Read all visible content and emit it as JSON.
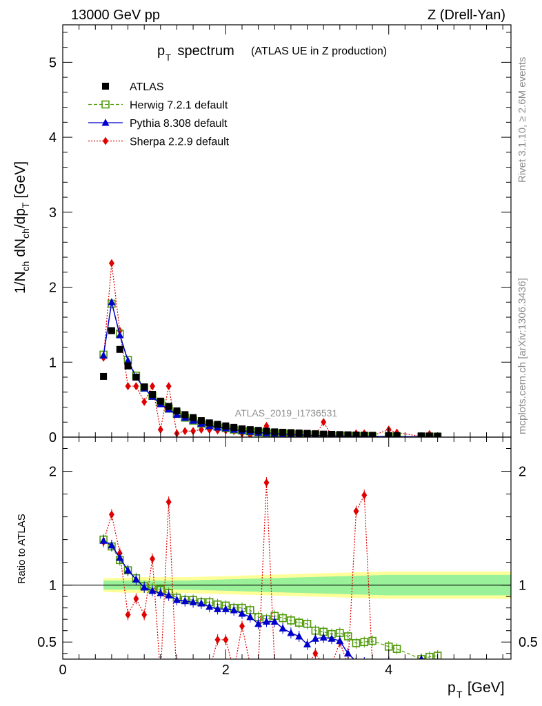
{
  "header": {
    "left": "13000 GeV pp",
    "right": "Z (Drell-Yan)"
  },
  "side": {
    "top": "Rivet 3.1.10, ≥ 2.6M events",
    "bottom": "mcplots.cern.ch [arXiv:1306.3436]"
  },
  "chart_data": {
    "type": "line",
    "title_main": "p",
    "title_sub": "T",
    "title_rest": " spectrum",
    "title_note": "(ATLAS UE in Z production)",
    "watermark": "ATLAS_2019_I1736531",
    "xlabel_main": "p",
    "xlabel_sub": "T",
    "xlabel_unit": " [GeV]",
    "ylabel": "1/N_ch dN_ch/dp_T [GeV]",
    "ylabel_parts": {
      "a": "1/N",
      "b": "ch",
      "c": " dN",
      "d": "ch",
      "e": "/dp",
      "f": "T",
      "g": " [GeV]"
    },
    "ratio_ylabel": "Ratio to ATLAS",
    "xlim": [
      0,
      5.5
    ],
    "ylim": [
      0,
      5.5
    ],
    "ratio_ylim": [
      0.35,
      2.3
    ],
    "x_ticks": [
      0,
      2,
      4
    ],
    "y_ticks": [
      0,
      1,
      2,
      3,
      4,
      5
    ],
    "ratio_y_ticks": [
      0.5,
      1,
      2
    ],
    "legend": [
      {
        "name": "ATLAS",
        "color": "#000000",
        "marker": "square-filled"
      },
      {
        "name": "Herwig 7.2.1 default",
        "color": "#4e9a06",
        "marker": "square-open"
      },
      {
        "name": "Pythia 8.308 default",
        "color": "#0000cc",
        "marker": "triangle"
      },
      {
        "name": "Sherpa 2.2.9 default",
        "color": "#e00000",
        "marker": "diamond"
      }
    ],
    "x": [
      0.5,
      0.6,
      0.7,
      0.8,
      0.9,
      1.0,
      1.1,
      1.2,
      1.3,
      1.4,
      1.5,
      1.6,
      1.7,
      1.8,
      1.9,
      2.0,
      2.1,
      2.2,
      2.3,
      2.4,
      2.5,
      2.6,
      2.7,
      2.8,
      2.9,
      3.0,
      3.1,
      3.2,
      3.3,
      3.4,
      3.5,
      3.6,
      3.7,
      3.8,
      4.0,
      4.1,
      4.4,
      4.5,
      4.6
    ],
    "series": [
      {
        "name": "ATLAS",
        "values": [
          0.81,
          1.42,
          1.17,
          0.95,
          0.8,
          0.67,
          0.57,
          0.48,
          0.41,
          0.35,
          0.3,
          0.26,
          0.22,
          0.19,
          0.17,
          0.15,
          0.13,
          0.11,
          0.1,
          0.09,
          0.08,
          0.07,
          0.065,
          0.06,
          0.055,
          0.05,
          0.045,
          0.04,
          0.037,
          0.034,
          0.031,
          0.028,
          0.026,
          0.024,
          0.021,
          0.019,
          0.016,
          0.015,
          0.014
        ]
      },
      {
        "name": "Herwig 7.2.1 default",
        "values": [
          1.1,
          1.78,
          1.38,
          1.03,
          0.82,
          0.66,
          0.55,
          0.46,
          0.38,
          0.31,
          0.26,
          0.22,
          0.18,
          0.16,
          0.14,
          0.12,
          0.1,
          0.088,
          0.078,
          0.066,
          0.056,
          0.05,
          0.046,
          0.042,
          0.036,
          0.033,
          0.027,
          0.024,
          0.021,
          0.019,
          0.017,
          0.014,
          0.013,
          0.012,
          0.01,
          0.009,
          0.007,
          0.007,
          0.006
        ]
      },
      {
        "name": "Pythia 8.308 default",
        "values": [
          1.09,
          1.8,
          1.36,
          1.02,
          0.8,
          0.65,
          0.54,
          0.44,
          0.37,
          0.3,
          0.26,
          0.22,
          0.18,
          0.15,
          0.13,
          0.12,
          0.1,
          0.085,
          0.073,
          0.06,
          0.054,
          0.048,
          0.04,
          0.036,
          0.031,
          0.024,
          0.022,
          0.02,
          0.018,
          0.016,
          0.012,
          0.01,
          0.009,
          0.008,
          0.007,
          0.006,
          0.006,
          0.005,
          0.005
        ]
      },
      {
        "name": "Sherpa 2.2.9 default",
        "values": [
          1.06,
          2.32,
          1.42,
          0.68,
          0.68,
          0.47,
          0.68,
          0.1,
          0.68,
          0.05,
          0.08,
          0.08,
          0.1,
          0.1,
          0.09,
          0.09,
          0.08,
          0.05,
          0.03,
          0.06,
          0.15,
          0.02,
          0.02,
          0.02,
          0.02,
          0.02,
          0.02,
          0.2,
          0.02,
          0.02,
          0.02,
          0.05,
          0.05,
          0.02,
          0.1,
          0.06,
          0.01,
          0.04,
          0.01
        ]
      }
    ],
    "ratio_series": [
      {
        "name": "Herwig 7.2.1 default",
        "values": [
          1.4,
          1.34,
          1.22,
          1.13,
          1.06,
          0.99,
          0.97,
          0.96,
          0.93,
          0.89,
          0.87,
          0.87,
          0.85,
          0.85,
          0.83,
          0.82,
          0.8,
          0.8,
          0.78,
          0.72,
          0.7,
          0.73,
          0.71,
          0.69,
          0.67,
          0.66,
          0.6,
          0.59,
          0.57,
          0.58,
          0.55,
          0.49,
          0.5,
          0.51,
          0.46,
          0.44,
          0.35,
          0.37,
          0.38
        ]
      },
      {
        "name": "Pythia 8.308 default",
        "values": [
          1.39,
          1.35,
          1.24,
          1.13,
          1.05,
          0.98,
          0.95,
          0.93,
          0.91,
          0.87,
          0.86,
          0.85,
          0.84,
          0.81,
          0.79,
          0.79,
          0.78,
          0.75,
          0.72,
          0.66,
          0.68,
          0.68,
          0.62,
          0.58,
          0.55,
          0.48,
          0.53,
          0.54,
          0.53,
          0.51,
          0.4,
          0.33,
          0.32,
          0.3,
          0.33,
          0.3,
          0.35,
          0.25,
          0.25
        ]
      },
      {
        "name": "Sherpa 2.2.9 default",
        "values": [
          1.38,
          1.62,
          1.28,
          0.74,
          0.88,
          0.74,
          1.23,
          0.2,
          1.73,
          0.15,
          0.25,
          0.3,
          0.25,
          0.25,
          0.52,
          0.52,
          0.25,
          0.64,
          0.3,
          0.3,
          1.9,
          0.3,
          0.25,
          0.3,
          0.3,
          0.3,
          0.4,
          0.3,
          0.3,
          0.5,
          0.3,
          1.65,
          1.79,
          0.3,
          0.3,
          0.3,
          0.3,
          0.3,
          0.3
        ]
      }
    ],
    "ratio_band": {
      "x": [
        0.5,
        1.0,
        1.5,
        2.0,
        2.5,
        3.0,
        3.5,
        4.0,
        4.5,
        5.5
      ],
      "inner": [
        0.04,
        0.04,
        0.04,
        0.05,
        0.06,
        0.07,
        0.08,
        0.09,
        0.09,
        0.09
      ],
      "outer": [
        0.06,
        0.07,
        0.07,
        0.08,
        0.09,
        0.1,
        0.11,
        0.12,
        0.12,
        0.12
      ]
    }
  }
}
